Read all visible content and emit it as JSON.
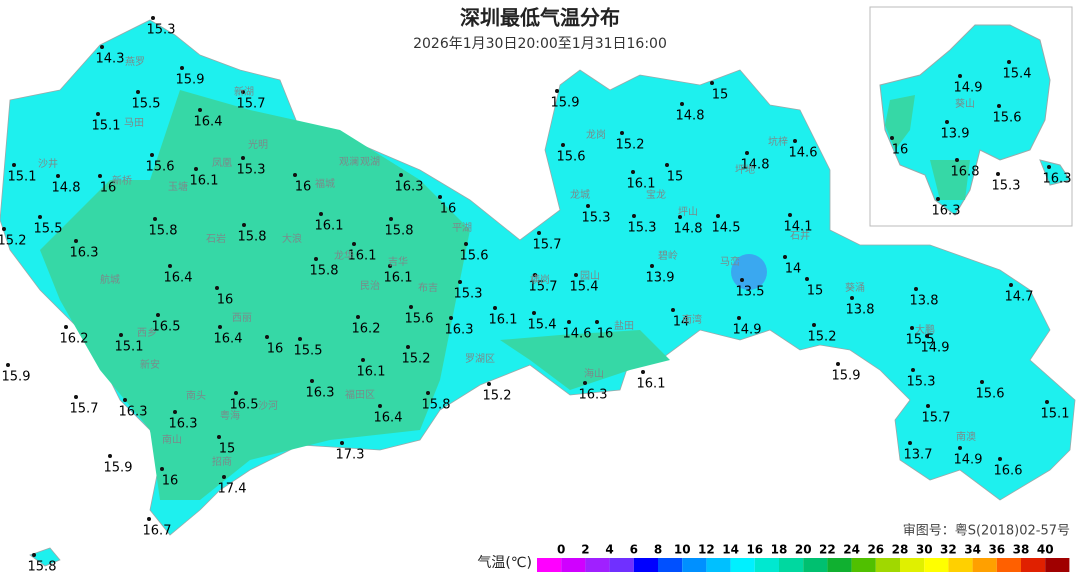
{
  "title": "深圳最低气温分布",
  "subtitle": "2026年1月30日20:00至1月31日16:00",
  "stations": [
    15.3,
    14.3,
    15.9,
    15.5,
    15.7,
    16.4,
    15.1,
    15.6,
    15.3,
    16.1,
    15.1,
    14.8,
    16,
    16,
    16.3,
    16,
    15.5,
    15.8,
    15.8,
    16.1,
    15.8,
    15.2,
    16.3,
    16.1,
    15.6,
    15.8,
    16.1,
    16.4,
    15.3,
    16,
    16.5,
    16.2,
    15.6,
    16.3,
    16.1,
    16.2,
    16.4,
    15.1,
    16,
    15.5,
    15.2,
    16.1,
    15.9,
    16.3,
    16.5,
    15.7,
    16.3,
    15.8,
    15.2,
    16.3,
    16.1,
    16.4,
    16.3,
    15,
    17.3,
    15.9,
    16,
    17.4,
    16.7,
    15.8,
    15.9,
    15,
    14.8,
    15.2,
    15.6,
    14.8,
    14.6,
    15,
    16.1,
    15.3,
    15.3,
    14.8,
    14.5,
    14.1,
    15.7,
    13.9,
    15.4,
    15.7,
    13.5,
    14,
    15,
    13.8,
    13.8,
    14.7,
    15.4,
    14.6,
    16,
    14,
    14.9,
    15.2,
    15.5,
    14.9,
    15.9,
    15.3,
    15.6,
    15.1,
    15.7,
    13.7,
    14.9,
    16.6,
    14.9,
    15.4,
    15.6,
    13.9,
    16,
    16.8,
    15.3,
    16.3,
    16.3
  ],
  "place_names": [
    "燕罗",
    "马田",
    "新湖",
    "光明",
    "凤凰",
    "玉塘",
    "沙井",
    "新桥",
    "福城",
    "观湖",
    "观澜",
    "石岩",
    "大浪",
    "航城",
    "龙华",
    "民治",
    "吉华",
    "西乡",
    "西丽",
    "新安",
    "南头",
    "粤海",
    "沙河",
    "南山",
    "招商",
    "福田区",
    "罗湖区",
    "盐田",
    "海山",
    "龙岗",
    "园山",
    "宝龙",
    "龙城",
    "坪地",
    "坪山",
    "碧岭",
    "马峦",
    "坑梓",
    "石井",
    "横岗",
    "南湾",
    "葵涌",
    "大鹏",
    "南澳",
    "平湖",
    "布吉",
    "葵山"
  ],
  "legend": {
    "label": "气温(℃)",
    "ticks": [
      0,
      2,
      4,
      6,
      8,
      10,
      12,
      14,
      16,
      18,
      20,
      22,
      24,
      26,
      28,
      30,
      32,
      34,
      36,
      38,
      40
    ],
    "colors": [
      "#ff00ff",
      "#d000ff",
      "#a020ff",
      "#7030ff",
      "#0000ff",
      "#0050ff",
      "#0090ff",
      "#00c0ff",
      "#00f0ff",
      "#00e8d0",
      "#00d8a0",
      "#00c070",
      "#10b030",
      "#50c000",
      "#a0d800",
      "#e0f000",
      "#ffff00",
      "#ffd000",
      "#ffa000",
      "#ff6000",
      "#e02000",
      "#a00000"
    ]
  },
  "approval": "审图号：粤S(2018)02-57号"
}
